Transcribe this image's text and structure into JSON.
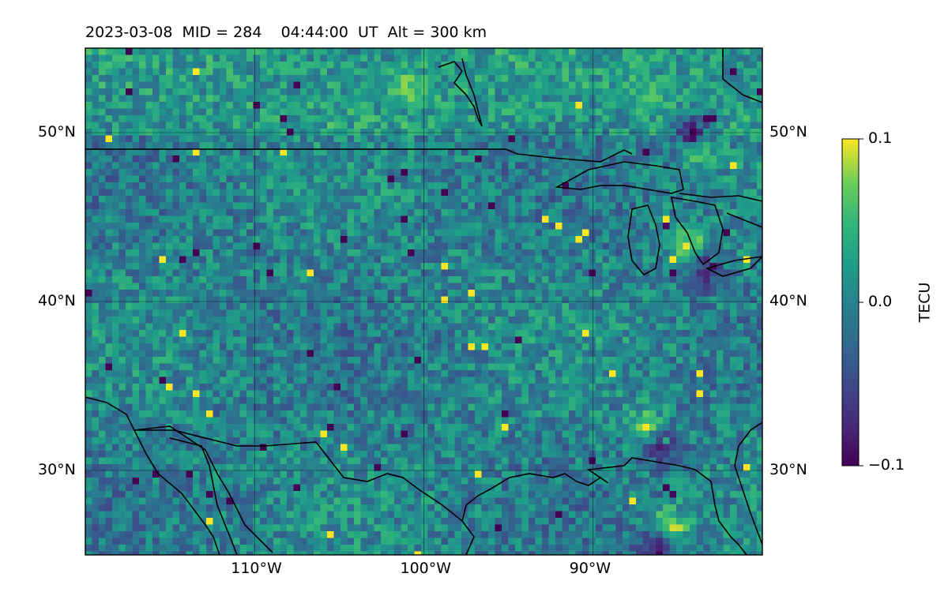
{
  "header": {
    "date": "2023-03-08",
    "mid_label": "MID = 284",
    "time_label": "04:44:00  UT",
    "alt_label": "Alt = 300 km"
  },
  "map": {
    "lon_range": [
      -120,
      -80
    ],
    "lat_range": [
      25,
      55
    ],
    "x_ticks": [
      {
        "lon": -110,
        "label": "110°W"
      },
      {
        "lon": -100,
        "label": "100°W"
      },
      {
        "lon": -90,
        "label": "90°W"
      }
    ],
    "y_ticks": [
      {
        "lat": 50,
        "label": "50°N"
      },
      {
        "lat": 40,
        "label": "40°N"
      },
      {
        "lat": 30,
        "label": "30°N"
      }
    ],
    "gridlines": true,
    "colormap": "viridis",
    "hotspots": [
      {
        "lon": -84.5,
        "lat": 43.5,
        "value": 0.1
      },
      {
        "lon": -83.5,
        "lat": 42.0,
        "value": -0.1
      },
      {
        "lon": -84.0,
        "lat": 49.2,
        "value": 0.1
      },
      {
        "lon": -84.3,
        "lat": 50.2,
        "value": -0.1
      },
      {
        "lon": -87.0,
        "lat": 33.0,
        "value": 0.1
      },
      {
        "lon": -86.0,
        "lat": 31.5,
        "value": -0.1
      },
      {
        "lon": -85.5,
        "lat": 27.0,
        "value": 0.1
      },
      {
        "lon": -86.5,
        "lat": 25.5,
        "value": -0.1
      },
      {
        "lon": -101.0,
        "lat": 53.0,
        "value": 0.09
      },
      {
        "lon": -87.0,
        "lat": 52.5,
        "value": 0.07
      }
    ]
  },
  "colorbar": {
    "label": "TECU",
    "vmin": -0.1,
    "vmax": 0.1,
    "ticks": [
      {
        "value": 0.1,
        "label": "0.1"
      },
      {
        "value": 0.0,
        "label": "0.0"
      },
      {
        "value": -0.1,
        "label": "−0.1"
      }
    ]
  }
}
